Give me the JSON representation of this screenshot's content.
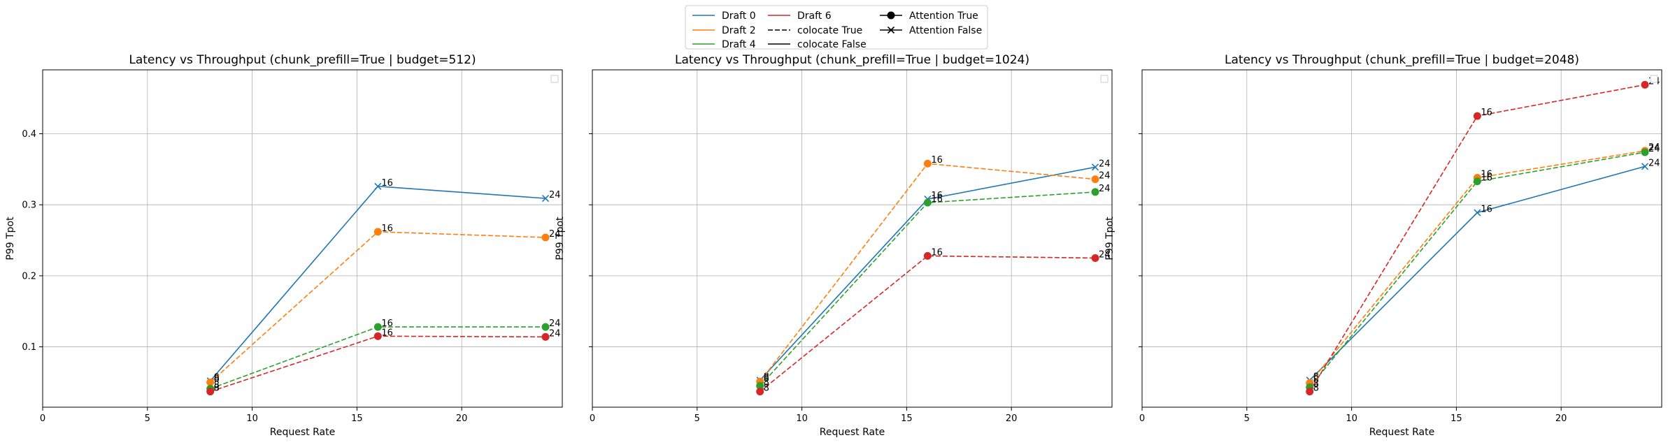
{
  "legend": {
    "entries": [
      {
        "label": "Draft 0",
        "kind": "line",
        "color": "#1f77b4",
        "dash": "solid",
        "marker": "none"
      },
      {
        "label": "Draft 2",
        "kind": "line",
        "color": "#ff7f0e",
        "dash": "solid",
        "marker": "none"
      },
      {
        "label": "Draft 4",
        "kind": "line",
        "color": "#2ca02c",
        "dash": "solid",
        "marker": "none"
      },
      {
        "label": "Draft 6",
        "kind": "line",
        "color": "#d62728",
        "dash": "solid",
        "marker": "none"
      },
      {
        "label": "colocate True",
        "kind": "line",
        "color": "#000000",
        "dash": "dashed",
        "marker": "none"
      },
      {
        "label": "colocate False",
        "kind": "line",
        "color": "#000000",
        "dash": "solid",
        "marker": "none"
      },
      {
        "label": "Attention True",
        "kind": "marker",
        "color": "#000000",
        "dash": "solid",
        "marker": "circle"
      },
      {
        "label": "Attention False",
        "kind": "marker",
        "color": "#000000",
        "dash": "solid",
        "marker": "x"
      }
    ],
    "placement": "top-center"
  },
  "chart_data": [
    {
      "type": "line",
      "title": "Latency vs Throughput (chunk_prefill=True | budget=512)",
      "xlabel": "Request Rate",
      "ylabel": "P99 Tpot",
      "xlim": [
        0,
        24.8
      ],
      "ylim": [
        0.015,
        0.49
      ],
      "xticks": [
        0,
        5,
        10,
        15,
        20
      ],
      "yticks": [
        0.1,
        0.2,
        0.3,
        0.4
      ],
      "grid": true,
      "series": [
        {
          "name": "Draft 0",
          "color": "#1f77b4",
          "dash": "solid",
          "marker": "x",
          "x": [
            8,
            16,
            24
          ],
          "y": [
            0.052,
            0.326,
            0.309
          ],
          "labels": [
            "8",
            "16",
            "24"
          ]
        },
        {
          "name": "Draft 2",
          "color": "#ff7f0e",
          "dash": "dashed",
          "marker": "circle",
          "x": [
            8,
            16,
            24
          ],
          "y": [
            0.05,
            0.262,
            0.254
          ],
          "labels": [
            "8",
            "16",
            "24"
          ]
        },
        {
          "name": "Draft 4",
          "color": "#2ca02c",
          "dash": "dashed",
          "marker": "circle",
          "x": [
            8,
            16,
            24
          ],
          "y": [
            0.041,
            0.128,
            0.128
          ],
          "labels": [
            "8",
            "16",
            "24"
          ]
        },
        {
          "name": "Draft 6",
          "color": "#d62728",
          "dash": "dashed",
          "marker": "circle",
          "x": [
            8,
            16,
            24
          ],
          "y": [
            0.037,
            0.115,
            0.114
          ],
          "labels": [
            "8",
            "16",
            "24"
          ]
        }
      ]
    },
    {
      "type": "line",
      "title": "Latency vs Throughput (chunk_prefill=True | budget=1024)",
      "xlabel": "Request Rate",
      "ylabel": "P99 Tpot",
      "xlim": [
        0,
        24.8
      ],
      "ylim": [
        0.015,
        0.49
      ],
      "xticks": [
        0,
        5,
        10,
        15,
        20
      ],
      "yticks": [
        0.1,
        0.2,
        0.3,
        0.4
      ],
      "grid": true,
      "series": [
        {
          "name": "Draft 0",
          "color": "#1f77b4",
          "dash": "solid",
          "marker": "x",
          "x": [
            8,
            16,
            24
          ],
          "y": [
            0.053,
            0.308,
            0.353
          ],
          "labels": [
            "8",
            "16",
            "24"
          ]
        },
        {
          "name": "Draft 2",
          "color": "#ff7f0e",
          "dash": "dashed",
          "marker": "circle",
          "x": [
            8,
            16,
            24
          ],
          "y": [
            0.051,
            0.358,
            0.336
          ],
          "labels": [
            "8",
            "16",
            "24"
          ]
        },
        {
          "name": "Draft 4",
          "color": "#2ca02c",
          "dash": "dashed",
          "marker": "circle",
          "x": [
            8,
            16,
            24
          ],
          "y": [
            0.045,
            0.303,
            0.318
          ],
          "labels": [
            "8",
            "16",
            "24"
          ]
        },
        {
          "name": "Draft 6",
          "color": "#d62728",
          "dash": "dashed",
          "marker": "circle",
          "x": [
            8,
            16,
            24
          ],
          "y": [
            0.037,
            0.228,
            0.225
          ],
          "labels": [
            "8",
            "16",
            "24"
          ]
        }
      ]
    },
    {
      "type": "line",
      "title": "Latency vs Throughput (chunk_prefill=True | budget=2048)",
      "xlabel": "Request Rate",
      "ylabel": "P99 Tpot",
      "xlim": [
        0,
        24.8
      ],
      "ylim": [
        0.015,
        0.49
      ],
      "xticks": [
        0,
        5,
        10,
        15,
        20
      ],
      "yticks": [
        0.1,
        0.2,
        0.3,
        0.4
      ],
      "grid": true,
      "series": [
        {
          "name": "Draft 0",
          "color": "#1f77b4",
          "dash": "solid",
          "marker": "x",
          "x": [
            8,
            16,
            24
          ],
          "y": [
            0.053,
            0.289,
            0.354
          ],
          "labels": [
            "8",
            "16",
            "24"
          ]
        },
        {
          "name": "Draft 2",
          "color": "#ff7f0e",
          "dash": "dashed",
          "marker": "circle",
          "x": [
            8,
            16,
            24
          ],
          "y": [
            0.049,
            0.338,
            0.376
          ],
          "labels": [
            "8",
            "16",
            "24"
          ]
        },
        {
          "name": "Draft 4",
          "color": "#2ca02c",
          "dash": "dashed",
          "marker": "circle",
          "x": [
            8,
            16,
            24
          ],
          "y": [
            0.043,
            0.333,
            0.374
          ],
          "labels": [
            "8",
            "16",
            "24"
          ]
        },
        {
          "name": "Draft 6",
          "color": "#d62728",
          "dash": "dashed",
          "marker": "circle",
          "x": [
            8,
            16,
            24
          ],
          "y": [
            0.037,
            0.425,
            0.469
          ],
          "labels": [
            "8",
            "16",
            "24"
          ]
        }
      ]
    }
  ]
}
